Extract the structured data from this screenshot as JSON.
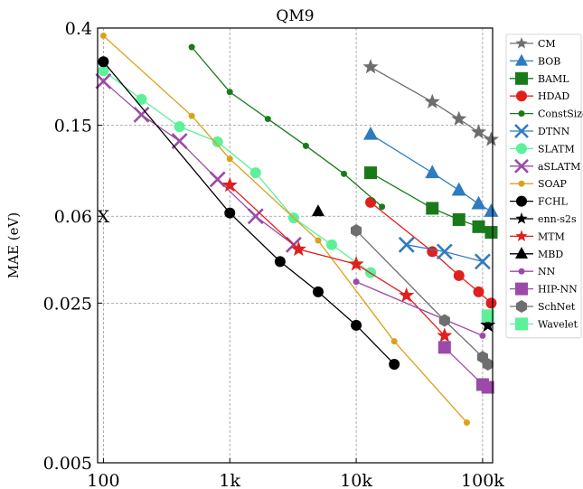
{
  "chart_data": {
    "type": "line",
    "title": "QM9",
    "xlabel": "",
    "ylabel": "MAE (eV)",
    "xscale": "log",
    "yscale": "log",
    "xlim": [
      90,
      120000
    ],
    "ylim": [
      0.005,
      0.4
    ],
    "xticks": [
      {
        "value": 100,
        "label": "100"
      },
      {
        "value": 1000,
        "label": "1k"
      },
      {
        "value": 10000,
        "label": "10k"
      },
      {
        "value": 100000,
        "label": "100k"
      }
    ],
    "yticks": [
      {
        "value": 0.4,
        "label": "0.4"
      },
      {
        "value": 0.15,
        "label": "0.15"
      },
      {
        "value": 0.06,
        "label": "0.06"
      },
      {
        "value": 0.025,
        "label": "0.025"
      },
      {
        "value": 0.005,
        "label": "0.005"
      }
    ],
    "grid": true,
    "legend_position": "right",
    "series": [
      {
        "name": "CM",
        "color": "#6e6e6e",
        "marker": "star",
        "size": 9,
        "x": [
          13000,
          40000,
          65000,
          93000,
          117000
        ],
        "y": [
          0.27,
          0.19,
          0.16,
          0.14,
          0.13
        ]
      },
      {
        "name": "BOB",
        "color": "#2f7bbf",
        "marker": "triangle",
        "size": 8,
        "x": [
          13000,
          40000,
          65000,
          93000,
          117000
        ],
        "y": [
          0.137,
          0.093,
          0.078,
          0.068,
          0.063
        ]
      },
      {
        "name": "BAML",
        "color": "#1a7a1a",
        "marker": "square",
        "size": 7,
        "x": [
          13000,
          40000,
          65000,
          93000,
          117000
        ],
        "y": [
          0.093,
          0.065,
          0.058,
          0.054,
          0.051
        ]
      },
      {
        "name": "HDAD",
        "color": "#e0201c",
        "marker": "circle",
        "size": 6,
        "x": [
          13000,
          40000,
          65000,
          93000,
          117000
        ],
        "y": [
          0.069,
          0.042,
          0.033,
          0.028,
          0.025
        ]
      },
      {
        "name": "ConstSize",
        "color": "#1a7a1a",
        "marker": "circle",
        "size": 3.5,
        "x": [
          500,
          1000,
          2000,
          4000,
          8000,
          16000
        ],
        "y": [
          0.33,
          0.21,
          0.16,
          0.122,
          0.092,
          0.066
        ]
      },
      {
        "name": "DTNN",
        "color": "#2f7bbf",
        "marker": "x",
        "size": 8,
        "x": [
          25000,
          50000,
          100000
        ],
        "y": [
          0.045,
          0.042,
          0.038
        ]
      },
      {
        "name": "SLATM",
        "color": "#5df09a",
        "marker": "circle",
        "size": 6,
        "x": [
          100,
          200,
          400,
          800,
          1600,
          3200,
          6400,
          13000
        ],
        "y": [
          0.26,
          0.195,
          0.148,
          0.127,
          0.093,
          0.059,
          0.045,
          0.034
        ]
      },
      {
        "name": "aSLATM",
        "color": "#9b4aa8",
        "marker": "x",
        "size": 8,
        "x": [
          100,
          200,
          400,
          800,
          1600,
          3200
        ],
        "y": [
          0.234,
          0.167,
          0.128,
          0.087,
          0.06,
          0.045
        ]
      },
      {
        "name": "SOAP",
        "color": "#d9a21b",
        "marker": "circle",
        "size": 3.5,
        "x": [
          100,
          500,
          1000,
          5000,
          20000,
          75000
        ],
        "y": [
          0.37,
          0.165,
          0.107,
          0.047,
          0.017,
          0.0075
        ]
      },
      {
        "name": "FCHL",
        "color": "#000000",
        "marker": "circle",
        "size": 6,
        "x": [
          100,
          1000,
          2500,
          5000,
          10000,
          20000
        ],
        "y": [
          0.285,
          0.062,
          0.038,
          0.028,
          0.02,
          0.0135
        ]
      },
      {
        "name": "enn-s2s",
        "color": "#000000",
        "marker": "star",
        "size": 9,
        "x": [
          110000
        ],
        "y": [
          0.02
        ]
      },
      {
        "name": "MTM",
        "color": "#e0201c",
        "marker": "star",
        "size": 9,
        "x": [
          1000,
          3500,
          10000,
          25000,
          50000
        ],
        "y": [
          0.082,
          0.043,
          0.037,
          0.027,
          0.018
        ]
      },
      {
        "name": "MBD",
        "color": "#000000",
        "marker": "triangle",
        "size": 7,
        "x": [
          5000
        ],
        "y": [
          0.063
        ]
      },
      {
        "name": "NN",
        "color": "#9b4aa8",
        "marker": "circle",
        "size": 3.5,
        "x": [
          10000,
          100000
        ],
        "y": [
          0.031,
          0.018
        ]
      },
      {
        "name": "HIP-NN",
        "color": "#9b4aa8",
        "marker": "square",
        "size": 7,
        "x": [
          50000,
          100000,
          110000
        ],
        "y": [
          0.016,
          0.011,
          0.0107
        ]
      },
      {
        "name": "SchNet",
        "color": "#6e6e6e",
        "marker": "hexagon",
        "size": 7,
        "x": [
          10000,
          50000,
          100000,
          110000
        ],
        "y": [
          0.052,
          0.021,
          0.0145,
          0.0135
        ]
      },
      {
        "name": "Wavelet",
        "color": "#5df09a",
        "marker": "square",
        "size": 7,
        "x": [
          110000
        ],
        "y": [
          0.022
        ]
      }
    ],
    "annotations": [
      {
        "text": "X",
        "x": 100,
        "y": 0.06
      }
    ]
  }
}
